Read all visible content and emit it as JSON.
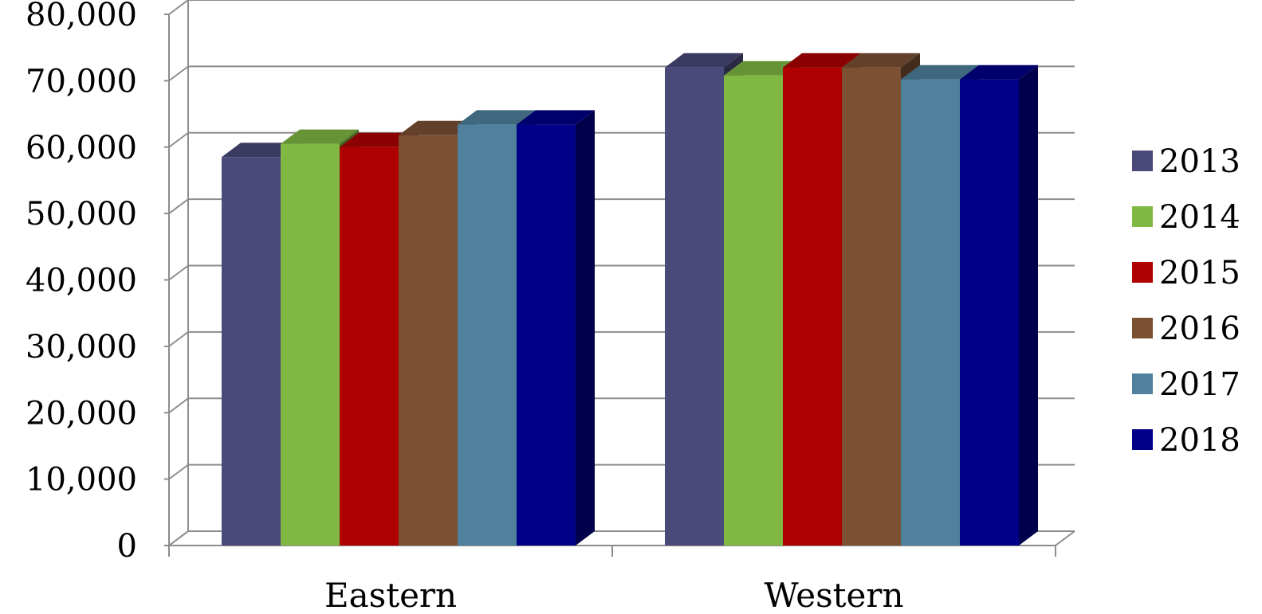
{
  "chart_data": {
    "type": "bar",
    "categories": [
      "Eastern",
      "Western"
    ],
    "series": [
      {
        "name": "2013",
        "values": [
          58500,
          72000
        ],
        "color": "#4a4a7a"
      },
      {
        "name": "2014",
        "values": [
          60500,
          70800
        ],
        "color": "#80b843"
      },
      {
        "name": "2015",
        "values": [
          60000,
          72000
        ],
        "color": "#ae0000"
      },
      {
        "name": "2016",
        "values": [
          61800,
          72000
        ],
        "color": "#7b5033"
      },
      {
        "name": "2017",
        "values": [
          63400,
          70200
        ],
        "color": "#4f819e"
      },
      {
        "name": "2018",
        "values": [
          63400,
          70200
        ],
        "color": "#000088"
      }
    ],
    "ylim": [
      0,
      80000
    ],
    "yticks": [
      "0",
      "10,000",
      "20,000",
      "30,000",
      "40,000",
      "50,000",
      "60,000",
      "70,000",
      "80,000"
    ],
    "grid": true,
    "legend": "right",
    "title": "",
    "xlabel": "",
    "ylabel": ""
  }
}
